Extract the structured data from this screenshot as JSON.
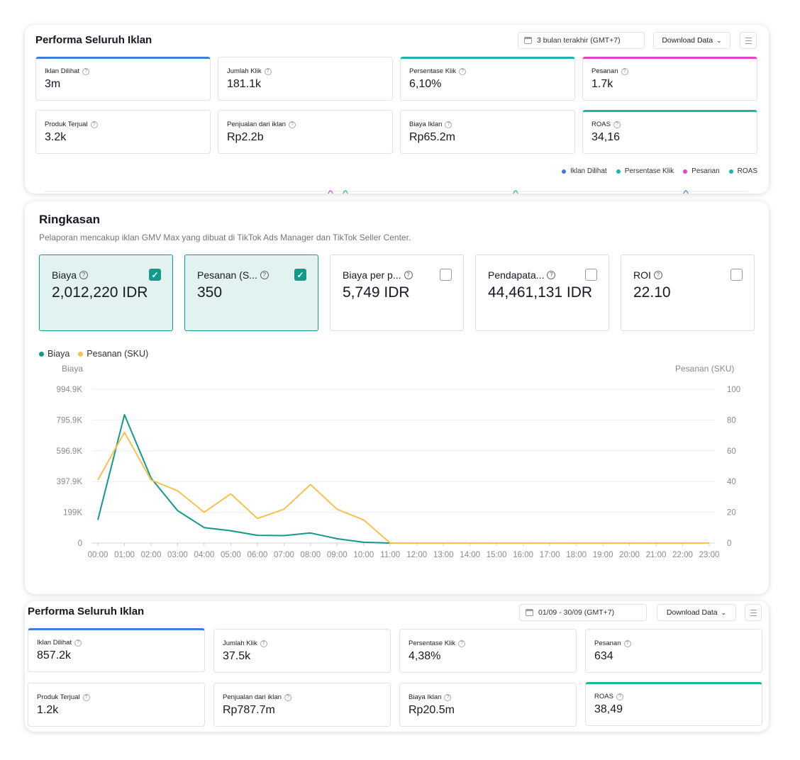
{
  "perf_top": {
    "title": "Performa Seluruh Iklan",
    "date_range": "3 bulan terakhir (GMT+7)",
    "download_label": "Download Data",
    "metrics": [
      {
        "label": "Iklan Dilihat",
        "value": "3m"
      },
      {
        "label": "Jumlah Klik",
        "value": "181.1k"
      },
      {
        "label": "Persentase Klik",
        "value": "6,10%"
      },
      {
        "label": "Pesanan",
        "value": "1.7k"
      },
      {
        "label": "Produk Terjual",
        "value": "3.2k"
      },
      {
        "label": "Penjualan dari iklan",
        "value": "Rp2.2b"
      },
      {
        "label": "Biaya Iklan",
        "value": "Rp65.2m"
      },
      {
        "label": "ROAS",
        "value": "34,16"
      }
    ],
    "legend": [
      "Iklan Dilihat",
      "Persentase Klik",
      "Pesanan",
      "ROAS"
    ]
  },
  "summary": {
    "title": "Ringkasan",
    "subtitle": "Pelaporan mencakup iklan GMV Max yang dibuat di TikTok Ads Manager dan TikTok Seller Center.",
    "cards": [
      {
        "label": "Biaya",
        "value": "2,012,220 IDR",
        "checked": true
      },
      {
        "label": "Pesanan (S...",
        "value": "350",
        "checked": true
      },
      {
        "label": "Biaya per p...",
        "value": "5,749 IDR",
        "checked": false
      },
      {
        "label": "Pendapata...",
        "value": "44,461,131 IDR",
        "checked": false
      },
      {
        "label": "ROI",
        "value": "22.10",
        "checked": false
      }
    ],
    "check_mark": "✓"
  },
  "chart_data": {
    "type": "line",
    "legend": [
      "Biaya",
      "Pesanan (SKU)"
    ],
    "ylabel": "Biaya",
    "y2label": "Pesanan (SKU)",
    "y_ticks": [
      "994.9K",
      "795.9K",
      "596.9K",
      "397.9K",
      "199K",
      "0"
    ],
    "y2_ticks": [
      "100",
      "80",
      "60",
      "40",
      "20",
      "0"
    ],
    "ylim": [
      0,
      994900
    ],
    "y2lim": [
      0,
      100
    ],
    "categories": [
      "00:00",
      "01:00",
      "02:00",
      "03:00",
      "04:00",
      "05:00",
      "06:00",
      "07:00",
      "08:00",
      "09:00",
      "10:00",
      "11:00",
      "12:00",
      "13:00",
      "14:00",
      "15:00",
      "16:00",
      "17:00",
      "18:00",
      "19:00",
      "20:00",
      "21:00",
      "22:00",
      "23:00"
    ],
    "series": [
      {
        "name": "Biaya",
        "axis": "left",
        "color": "#14988b",
        "values": [
          150000,
          830000,
          420000,
          210000,
          100000,
          80000,
          50000,
          48000,
          65000,
          28000,
          5000,
          0,
          0,
          0,
          0,
          0,
          0,
          0,
          0,
          0,
          0,
          0,
          0,
          0
        ]
      },
      {
        "name": "Pesanan (SKU)",
        "axis": "right",
        "color": "#f5c14f",
        "values": [
          41,
          72,
          41,
          34,
          20,
          32,
          16,
          22,
          38,
          22,
          15,
          0,
          0,
          0,
          0,
          0,
          0,
          0,
          0,
          0,
          0,
          0,
          0,
          0
        ]
      }
    ]
  },
  "perf_bottom": {
    "title": "Performa Seluruh Iklan",
    "date_range": "01/09 - 30/09 (GMT+7)",
    "download_label": "Download Data",
    "metrics": [
      {
        "label": "Iklan Dilihat",
        "value": "857.2k"
      },
      {
        "label": "Jumlah Klik",
        "value": "37.5k"
      },
      {
        "label": "Persentase Klik",
        "value": "4,38%"
      },
      {
        "label": "Pesanan",
        "value": "634"
      },
      {
        "label": "Produk Terjual",
        "value": "1.2k"
      },
      {
        "label": "Penjualan dari iklan",
        "value": "Rp787.7m"
      },
      {
        "label": "Biaya Iklan",
        "value": "Rp20.5m"
      },
      {
        "label": "ROAS",
        "value": "38,49"
      }
    ]
  },
  "colors": {
    "teal": "#14988b",
    "yellow": "#f5c14f",
    "blue": "#3d7ed8",
    "pink": "#e443c6",
    "teal_bar": "#1fb5a6"
  }
}
